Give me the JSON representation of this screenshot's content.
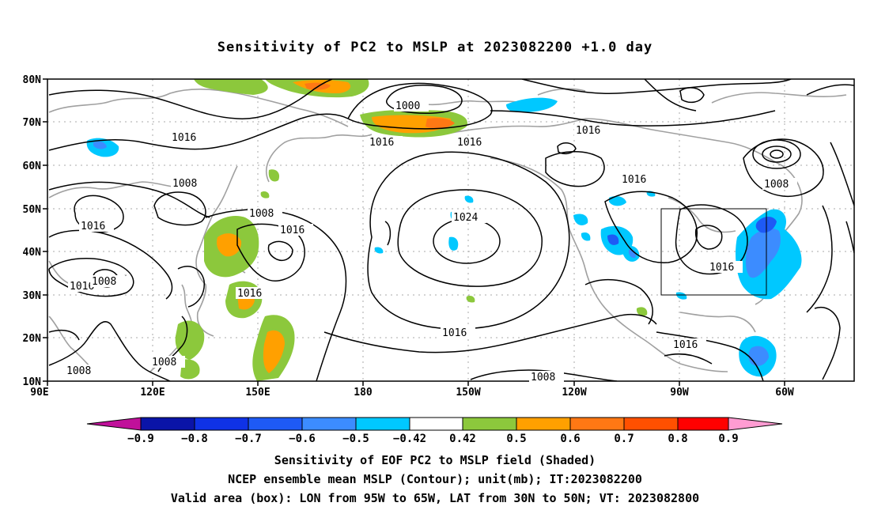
{
  "title": "Sensitivity of PC2 to MSLP at 2023082200 +1.0 day",
  "map": {
    "lat_ticks": [
      "80N",
      "70N",
      "60N",
      "50N",
      "40N",
      "30N",
      "20N",
      "10N"
    ],
    "lon_ticks": [
      "90E",
      "120E",
      "150E",
      "180",
      "150W",
      "120W",
      "90W",
      "60W"
    ],
    "lon_range": [
      90,
      320
    ],
    "lat_range": [
      10,
      80
    ],
    "grid": true,
    "contour_labels": [
      "1000",
      "1016",
      "1016",
      "1016",
      "1016",
      "1008",
      "1016",
      "1008",
      "1016",
      "1016",
      "1008",
      "1016",
      "1024",
      "1016",
      "1016",
      "1016",
      "1008",
      "1008",
      "1008",
      "1008",
      "1016",
      "1008"
    ],
    "valid_box": {
      "lon_from": "95W",
      "lon_to": "65W",
      "lat_from": "30N",
      "lat_to": "50N"
    }
  },
  "colorbar": {
    "labels": [
      "−0.9",
      "−0.8",
      "−0.7",
      "−0.6",
      "−0.5",
      "−0.42",
      "0.42",
      "0.5",
      "0.6",
      "0.7",
      "0.8",
      "0.9"
    ],
    "colors": {
      "lowest": "#c0109a",
      "bins": [
        "#0a14a8",
        "#0f32e6",
        "#1e5af5",
        "#3c8cff",
        "#00c8ff",
        "#ffffff",
        "#8cc83c",
        "#ffa000",
        "#ff7814",
        "#ff5000",
        "#ff0000"
      ],
      "highest": "#ff9cd2"
    }
  },
  "captions": [
    "Sensitivity of EOF PC2 to MSLP field (Shaded)",
    "NCEP ensemble mean MSLP (Contour); unit(mb); IT:2023082200",
    "Valid area (box): LON from 95W to 65W, LAT from 30N to 50N; VT: 2023082800"
  ]
}
